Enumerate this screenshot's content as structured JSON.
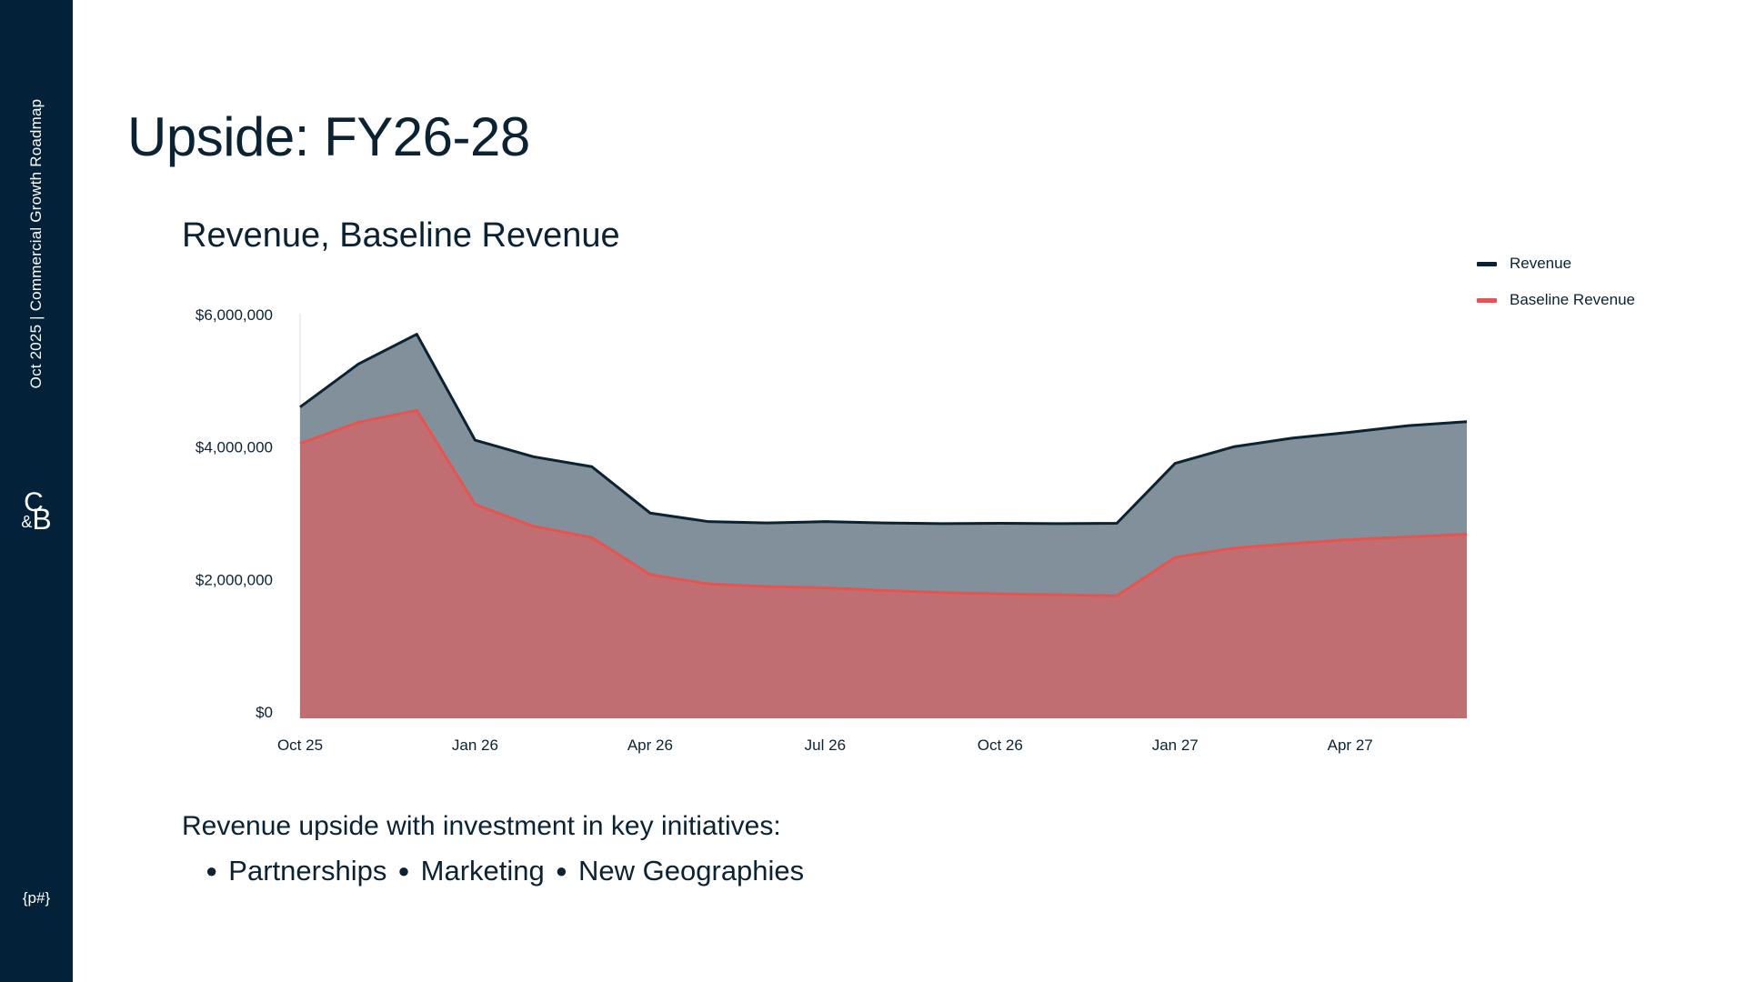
{
  "sidebar": {
    "vertical_text": "Oct 2025 | Commercial Growth Roadmap",
    "logo_c": "C",
    "logo_amp": "&",
    "logo_b": "B",
    "page_number": "{p#}"
  },
  "slide": {
    "title": "Upside: FY26-28",
    "caption": "Revenue upside with investment in key initiatives:",
    "bullets": [
      "Partnerships",
      "Marketing",
      "New Geographies"
    ]
  },
  "colors": {
    "sidebar_bg": "#03223a",
    "revenue_line": "#0b2233",
    "revenue_fill": "#82909b",
    "baseline_line": "#e8534f",
    "baseline_fill": "#c06e72"
  },
  "chart_data": {
    "type": "area",
    "title": "Revenue, Baseline Revenue",
    "x": [
      "Oct 25",
      "Nov 25",
      "Dec 25",
      "Jan 26",
      "Feb 26",
      "Mar 26",
      "Apr 26",
      "May 26",
      "Jun 26",
      "Jul 26",
      "Aug 26",
      "Sep 26",
      "Oct 26",
      "Nov 26",
      "Dec 26",
      "Jan 27",
      "Feb 27",
      "Mar 27",
      "Apr 27",
      "May 27",
      "Jun 27"
    ],
    "x_tick_labels": [
      "Oct 25",
      "Jan 26",
      "Apr 26",
      "Jul 26",
      "Oct 26",
      "Jan 27",
      "Apr 27"
    ],
    "y_tick_labels": [
      "$6,000,000",
      "$4,000,000",
      "$2,000,000",
      "$0"
    ],
    "y_ticks": [
      6000000,
      4000000,
      2000000,
      0
    ],
    "ylim": [
      0,
      6000000
    ],
    "legend_position": "top-right",
    "series": [
      {
        "name": "Revenue",
        "values": [
          4700000,
          5350000,
          5800000,
          4200000,
          3950000,
          3800000,
          3100000,
          2970000,
          2950000,
          2970000,
          2950000,
          2940000,
          2945000,
          2940000,
          2945000,
          3850000,
          4100000,
          4230000,
          4320000,
          4420000,
          4480000
        ]
      },
      {
        "name": "Baseline Revenue",
        "values": [
          4150000,
          4470000,
          4650000,
          3230000,
          2900000,
          2730000,
          2170000,
          2030000,
          1990000,
          1970000,
          1930000,
          1900000,
          1880000,
          1865000,
          1850000,
          2430000,
          2570000,
          2640000,
          2700000,
          2740000,
          2780000
        ]
      }
    ]
  }
}
